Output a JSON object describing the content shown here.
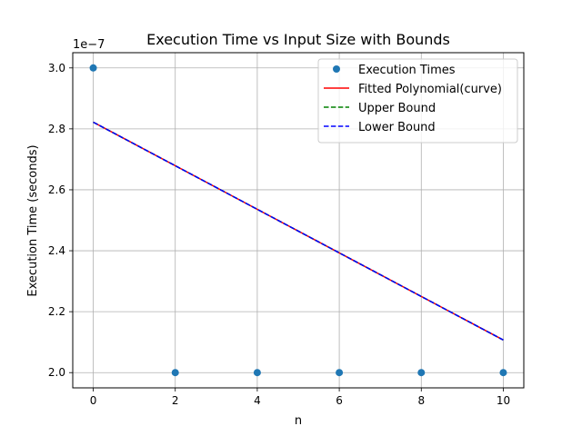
{
  "chart_data": {
    "type": "scatter",
    "title": "Execution Time vs Input Size with Bounds",
    "xlabel": "n",
    "ylabel": "Execution Time (seconds)",
    "y_scale_label": "1e−7",
    "xlim": [
      -0.5,
      10.5
    ],
    "ylim": [
      1.95,
      3.05
    ],
    "y_multiplier": 1e-07,
    "x_ticks": [
      0,
      2,
      4,
      6,
      8,
      10
    ],
    "x_tick_labels": [
      "0",
      "2",
      "4",
      "6",
      "8",
      "10"
    ],
    "y_ticks": [
      2.0,
      2.2,
      2.4,
      2.6,
      2.8,
      3.0
    ],
    "y_tick_labels": [
      "2.0",
      "2.2",
      "2.4",
      "2.6",
      "2.8",
      "3.0"
    ],
    "grid": true,
    "legend_position": "top-right",
    "series": [
      {
        "name": "Execution Times",
        "kind": "scatter",
        "color": "#1f77b4",
        "x": [
          0,
          2,
          4,
          6,
          8,
          10
        ],
        "y": [
          3.0,
          2.0,
          2.0,
          2.0,
          2.0,
          2.0
        ]
      },
      {
        "name": "Fitted Polynomial(curve)",
        "kind": "line",
        "style": "solid",
        "color": "#ff0000",
        "x": [
          0,
          10
        ],
        "y": [
          2.822,
          2.107
        ]
      },
      {
        "name": "Upper Bound",
        "kind": "line",
        "style": "dashed",
        "color": "#008000",
        "x": [
          0,
          10
        ],
        "y": [
          2.822,
          2.107
        ]
      },
      {
        "name": "Lower Bound",
        "kind": "line",
        "style": "dashed",
        "color": "#0000ff",
        "x": [
          0,
          10
        ],
        "y": [
          2.822,
          2.107
        ]
      }
    ]
  }
}
